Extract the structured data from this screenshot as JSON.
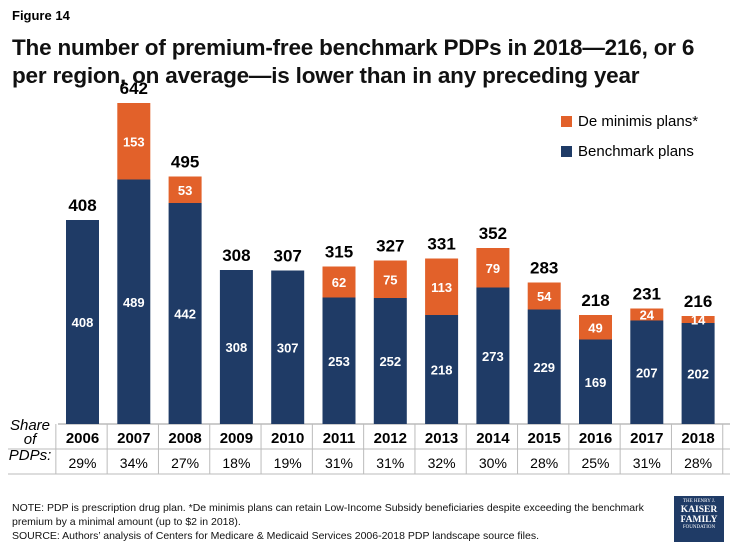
{
  "figure_label": "Figure 14",
  "title": "The number of premium-free benchmark PDPs in 2018—216, or 6 per region, on average—is lower than in any preceding year",
  "legend": {
    "de_minimis": "De minimis plans*",
    "benchmark": "Benchmark plans"
  },
  "colors": {
    "benchmark": "#1f3b66",
    "de_minimis": "#e2612a"
  },
  "chart_data": {
    "type": "bar",
    "stacked": true,
    "categories": [
      "2006",
      "2007",
      "2008",
      "2009",
      "2010",
      "2011",
      "2012",
      "2013",
      "2014",
      "2015",
      "2016",
      "2017",
      "2018"
    ],
    "series": [
      {
        "name": "Benchmark plans",
        "values": [
          408,
          489,
          442,
          308,
          307,
          253,
          252,
          218,
          273,
          229,
          169,
          207,
          202
        ]
      },
      {
        "name": "De minimis plans*",
        "values": [
          0,
          153,
          53,
          0,
          0,
          62,
          75,
          113,
          79,
          54,
          49,
          24,
          14
        ]
      }
    ],
    "totals": [
      408,
      642,
      495,
      308,
      307,
      315,
      327,
      331,
      352,
      283,
      218,
      231,
      216
    ],
    "share_label": "Share of PDPs:",
    "shares": [
      "29%",
      "34%",
      "27%",
      "18%",
      "19%",
      "31%",
      "31%",
      "32%",
      "30%",
      "28%",
      "25%",
      "31%",
      "28%"
    ],
    "ylim": [
      0,
      700
    ],
    "legend_position": "top-right"
  },
  "notes": {
    "line1": "NOTE: PDP is prescription drug plan. *De minimis plans can retain Low-Income Subsidy beneficiaries despite exceeding the benchmark premium by a minimal amount (up to $2 in 2018).",
    "line2": "SOURCE: Authors’ analysis of Centers for Medicare & Medicaid Services 2006-2018 PDP landscape source files."
  },
  "logo": {
    "line1": "THE HENRY J.",
    "line2": "KAISER",
    "line3": "FAMILY",
    "line4": "FOUNDATION"
  }
}
